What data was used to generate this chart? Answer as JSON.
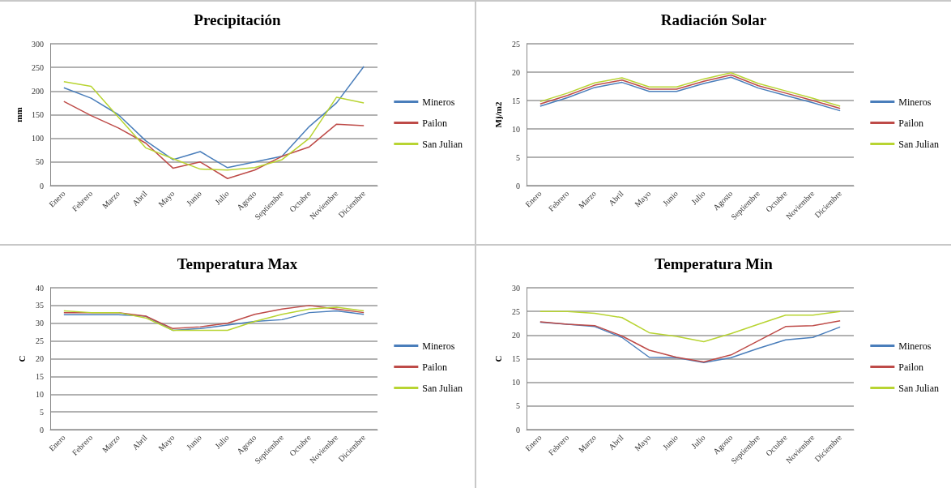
{
  "chart_data": [
    {
      "type": "line",
      "title": "Precipitación",
      "ylabel": "mm",
      "categories": [
        "Enero",
        "Febrero",
        "Marzo",
        "Abril",
        "Mayo",
        "Junio",
        "Julio",
        "Agosto",
        "Septiembre",
        "Octubre",
        "Noviembre",
        "Diciembre"
      ],
      "ylim": [
        0,
        300
      ],
      "yticks": [
        0,
        50,
        100,
        150,
        200,
        250,
        300
      ],
      "grid": "y",
      "legend": "right",
      "marker": "none",
      "series": [
        {
          "name": "Mineros",
          "color": "#4a7ebb",
          "values": [
            207,
            185,
            150,
            95,
            55,
            72,
            38,
            50,
            62,
            125,
            175,
            252
          ]
        },
        {
          "name": "Pailon",
          "color": "#be4b48",
          "values": [
            178,
            148,
            122,
            90,
            37,
            50,
            15,
            33,
            62,
            82,
            130,
            127
          ]
        },
        {
          "name": "San Julian",
          "color": "#b8d432",
          "values": [
            220,
            210,
            145,
            80,
            57,
            35,
            33,
            38,
            55,
            100,
            187,
            175
          ]
        }
      ]
    },
    {
      "type": "line",
      "title": "Radiación Solar",
      "ylabel": "Mj/m2",
      "categories": [
        "Enero",
        "Febrero",
        "Marzo",
        "Abril",
        "Mayo",
        "Junio",
        "Julio",
        "Agosto",
        "Septiembre",
        "Octubre",
        "Noviembre",
        "Diciembre"
      ],
      "ylim": [
        0,
        25
      ],
      "yticks": [
        0,
        5,
        10,
        15,
        20,
        25
      ],
      "grid": "y",
      "legend": "right",
      "marker": "none",
      "series": [
        {
          "name": "Mineros",
          "color": "#4a7ebb",
          "values": [
            14.0,
            15.5,
            17.3,
            18.2,
            16.6,
            16.6,
            18.0,
            19.1,
            17.2,
            15.9,
            14.6,
            13.2
          ]
        },
        {
          "name": "Pailon",
          "color": "#be4b48",
          "values": [
            14.4,
            15.9,
            17.7,
            18.6,
            17.0,
            17.0,
            18.4,
            19.5,
            17.6,
            16.3,
            15.0,
            13.6
          ]
        },
        {
          "name": "San Julian",
          "color": "#b8d432",
          "values": [
            14.8,
            16.3,
            18.1,
            19.0,
            17.4,
            17.4,
            18.8,
            19.9,
            18.0,
            16.7,
            15.4,
            14.0
          ]
        }
      ]
    },
    {
      "type": "line",
      "title": "Temperatura Max",
      "ylabel": "C",
      "categories": [
        "Enero",
        "Febrero",
        "Marzo",
        "Abril",
        "Mayo",
        "Junio",
        "Julio",
        "Agosto",
        "Septiembre",
        "Octubre",
        "Noviembre",
        "Diciembre"
      ],
      "ylim": [
        0,
        40
      ],
      "yticks": [
        0,
        5,
        10,
        15,
        20,
        25,
        30,
        35,
        40
      ],
      "grid": "y",
      "legend": "right",
      "marker": "none",
      "series": [
        {
          "name": "Mineros",
          "color": "#4a7ebb",
          "values": [
            32.4,
            32.4,
            32.4,
            32,
            28,
            28.5,
            29.5,
            30.5,
            31,
            33,
            33.5,
            32.5
          ]
        },
        {
          "name": "Pailon",
          "color": "#be4b48",
          "values": [
            33,
            33,
            33,
            32,
            28.5,
            29,
            30,
            32.5,
            34,
            35,
            34,
            33
          ]
        },
        {
          "name": "San Julian",
          "color": "#b8d432",
          "values": [
            33.5,
            33,
            33,
            31.5,
            28,
            28,
            28,
            30.5,
            32.5,
            34,
            34.5,
            33.5
          ]
        }
      ]
    },
    {
      "type": "line",
      "title": "Temperatura Min",
      "ylabel": "C",
      "categories": [
        "Enero",
        "Febrero",
        "Marzo",
        "Abril",
        "Mayo",
        "Junio",
        "Julio",
        "Agosto",
        "Septiembre",
        "Octubre",
        "Noviembre",
        "Diciembre"
      ],
      "ylim": [
        0,
        30
      ],
      "yticks": [
        0,
        5,
        10,
        15,
        20,
        25,
        30
      ],
      "grid": "y",
      "legend": "right",
      "marker": "none",
      "series": [
        {
          "name": "Mineros",
          "color": "#4a7ebb",
          "values": [
            22.7,
            22.3,
            21.8,
            19.5,
            15.3,
            15.2,
            14.2,
            15.2,
            17.2,
            19,
            19.5,
            21.7
          ]
        },
        {
          "name": "Pailon",
          "color": "#be4b48",
          "values": [
            22.8,
            22.3,
            22,
            19.8,
            16.8,
            15.3,
            14.3,
            15.8,
            18.8,
            21.8,
            22,
            23
          ]
        },
        {
          "name": "San Julian",
          "color": "#b8d432",
          "values": [
            25,
            25,
            24.6,
            23.7,
            20.5,
            19.7,
            18.6,
            20.3,
            22.3,
            24.2,
            24.2,
            25
          ]
        }
      ]
    }
  ]
}
